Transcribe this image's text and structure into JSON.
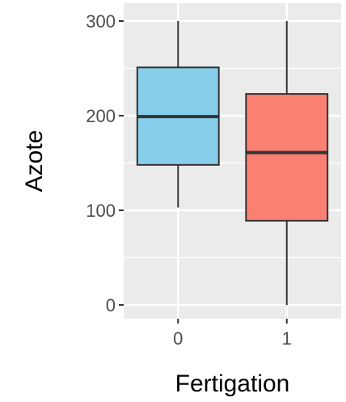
{
  "chart_data": {
    "type": "boxplot",
    "xlabel": "Fertigation",
    "ylabel": "Azote",
    "categories": [
      "0",
      "1"
    ],
    "ylim": [
      -20,
      320
    ],
    "yticks": [
      0,
      100,
      200,
      300
    ],
    "ytick_labels": [
      "0",
      "100",
      "200",
      "300"
    ],
    "grid": true,
    "background": "#ebebeb",
    "series": [
      {
        "category": "0",
        "min": 103,
        "q1": 148,
        "median": 199,
        "q3": 251,
        "max": 300,
        "color": "#87ceeb"
      },
      {
        "category": "1",
        "min": 0,
        "q1": 89,
        "median": 161,
        "q3": 223,
        "max": 300,
        "color": "#fa8072"
      }
    ]
  }
}
